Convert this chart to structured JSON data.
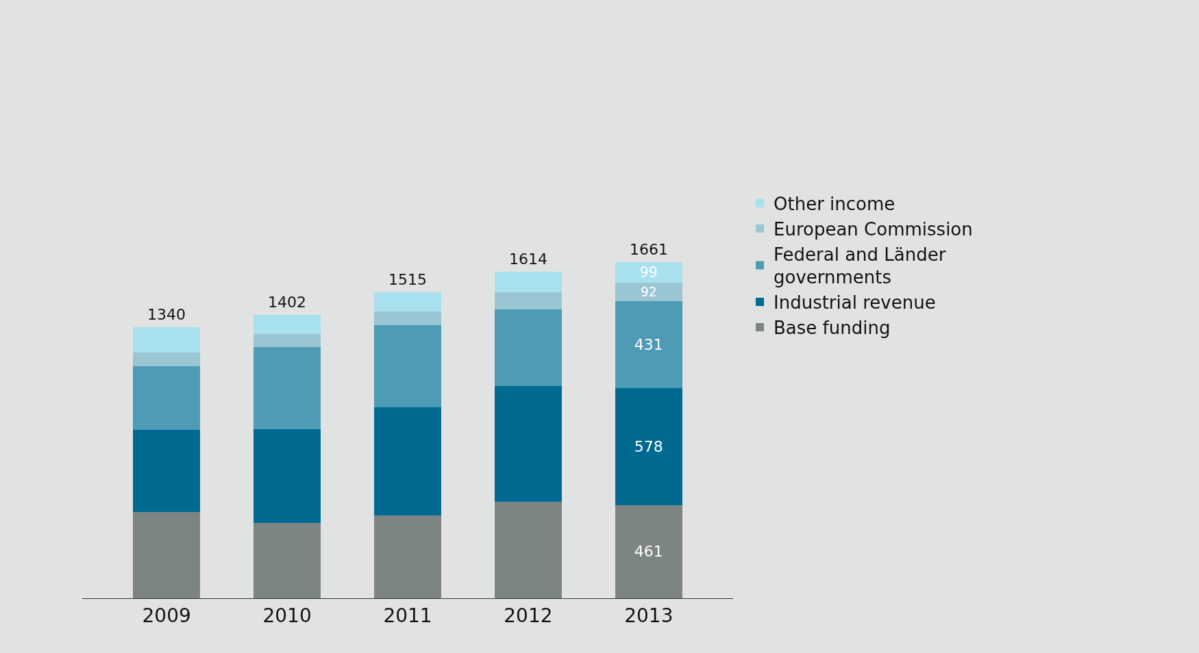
{
  "chart_data": {
    "type": "bar",
    "stacked": true,
    "categories": [
      "2009",
      "2010",
      "2011",
      "2012",
      "2013"
    ],
    "series": [
      {
        "name": "Base funding",
        "color": "#7d8584",
        "values": [
          425,
          373,
          411,
          477,
          461
        ],
        "value_labels": [
          null,
          null,
          null,
          null,
          "461"
        ]
      },
      {
        "name": "Industrial revenue",
        "color": "#006a90",
        "values": [
          407,
          463,
          533,
          571,
          578
        ],
        "value_labels": [
          null,
          null,
          null,
          null,
          "578"
        ]
      },
      {
        "name": "Federal and Länder governments",
        "color": "#4e9bb5",
        "values": [
          317,
          407,
          407,
          380,
          431
        ],
        "value_labels": [
          null,
          null,
          null,
          null,
          "431"
        ]
      },
      {
        "name": "European Commission",
        "color": "#9ac6d4",
        "values": [
          66,
          63,
          66,
          87,
          92
        ],
        "value_labels": [
          null,
          null,
          null,
          null,
          "92"
        ]
      },
      {
        "name": "Other income",
        "color": "#a8e0ee",
        "values": [
          125,
          96,
          98,
          99,
          99
        ],
        "value_labels": [
          null,
          null,
          null,
          null,
          "99"
        ]
      }
    ],
    "totals": [
      "1340",
      "1402",
      "1515",
      "1614",
      "1661"
    ],
    "legend": "right",
    "grid": false
  }
}
